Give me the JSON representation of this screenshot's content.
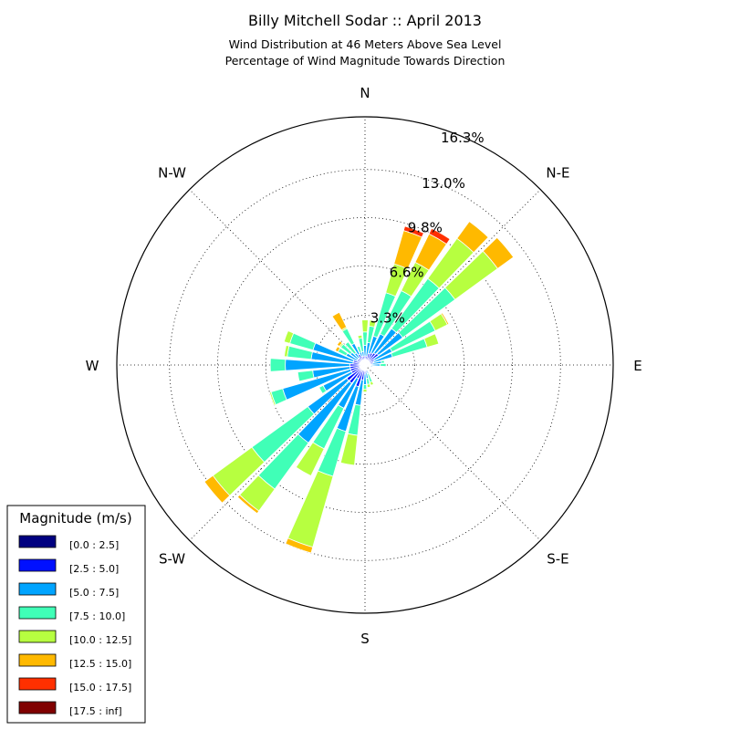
{
  "chart_data": {
    "type": "windrose",
    "title": "Billy Mitchell Sodar :: April 2013",
    "subtitle_lines": [
      "Wind Distribution at 46 Meters Above Sea Level",
      "Percentage of Wind Magnitude Towards Direction"
    ],
    "directions": [
      "N",
      "N-E",
      "E",
      "S-E",
      "S",
      "S-W",
      "W",
      "N-W"
    ],
    "radial_ticks": [
      3.3,
      6.6,
      9.8,
      13.0,
      16.3
    ],
    "radial_tick_labels": [
      "3.3%",
      "6.6%",
      "9.8%",
      "13.0%",
      "16.3%"
    ],
    "rmax": 16.5,
    "legend": {
      "title": "Magnitude (m/s)",
      "location": "lower-left",
      "bins": [
        "[0.0 : 2.5]",
        "[2.5 : 5.0]",
        "[5.0 : 7.5]",
        "[7.5 : 10.0]",
        "[10.0 : 12.5]",
        "[12.5 : 15.0]",
        "[15.0 : 17.5]",
        "[17.5 : inf]"
      ],
      "colors": [
        "#000080",
        "#0010ff",
        "#00a4ff",
        "#40ffb7",
        "#b7ff40",
        "#ffb900",
        "#ff3000",
        "#800000"
      ]
    },
    "sector_angles_deg": [
      0,
      10,
      20,
      30,
      40,
      50,
      60,
      70,
      80,
      90,
      100,
      110,
      120,
      130,
      140,
      150,
      160,
      170,
      180,
      190,
      200,
      210,
      220,
      230,
      240,
      250,
      260,
      270,
      280,
      290,
      300,
      310,
      320,
      330,
      340,
      350
    ],
    "sector_width_deg": 8,
    "cumulative_percent": [
      [
        0.2,
        0.6,
        1.3,
        2.2,
        3.0,
        3.0,
        3.0,
        3.0
      ],
      [
        0.2,
        0.6,
        1.5,
        2.6,
        3.0,
        3.0,
        3.0,
        3.0
      ],
      [
        0.2,
        0.8,
        2.0,
        5.0,
        7.0,
        9.3,
        9.6,
        9.6
      ],
      [
        0.2,
        0.9,
        2.3,
        5.5,
        7.6,
        9.7,
        10.1,
        10.1
      ],
      [
        0.2,
        1.0,
        3.0,
        7.1,
        10.4,
        11.8,
        11.8,
        11.8
      ],
      [
        0.2,
        1.1,
        3.1,
        7.4,
        10.9,
        12.2,
        12.2,
        12.2
      ],
      [
        0.2,
        0.7,
        2.0,
        5.2,
        6.1,
        6.2,
        6.2,
        6.2
      ],
      [
        0.2,
        0.6,
        1.9,
        4.3,
        5.1,
        5.1,
        5.1,
        5.1
      ],
      [
        0.1,
        0.5,
        1.1,
        1.3,
        1.3,
        1.3,
        1.3,
        1.3
      ],
      [
        0.1,
        0.4,
        1.0,
        1.4,
        1.4,
        1.4,
        1.4,
        1.4
      ],
      [
        0.1,
        0.3,
        0.5,
        0.5,
        0.5,
        0.5,
        0.5,
        0.5
      ],
      [
        0.1,
        0.2,
        0.2,
        0.2,
        0.2,
        0.2,
        0.2,
        0.2
      ],
      [
        0.1,
        0.1,
        0.1,
        0.1,
        0.1,
        0.1,
        0.1,
        0.1
      ],
      [
        0.1,
        0.1,
        0.1,
        0.1,
        0.1,
        0.1,
        0.1,
        0.1
      ],
      [
        0.1,
        0.1,
        0.1,
        0.1,
        0.1,
        0.1,
        0.1,
        0.1
      ],
      [
        0.1,
        0.1,
        0.1,
        0.1,
        0.1,
        0.1,
        0.1,
        0.1
      ],
      [
        0.1,
        0.3,
        0.6,
        1.2,
        1.4,
        1.4,
        1.4,
        1.4
      ],
      [
        0.2,
        0.5,
        0.9,
        1.3,
        1.5,
        1.5,
        1.5,
        1.5
      ],
      [
        0.2,
        0.6,
        1.3,
        1.6,
        1.8,
        1.8,
        1.8,
        1.8
      ],
      [
        0.3,
        1.0,
        2.7,
        4.7,
        6.7,
        6.7,
        6.7,
        6.7
      ],
      [
        0.3,
        1.5,
        4.6,
        7.7,
        12.6,
        13.0,
        13.0,
        13.0
      ],
      [
        0.3,
        1.0,
        3.2,
        6.2,
        8.2,
        8.2,
        8.2,
        8.2
      ],
      [
        0.3,
        1.5,
        6.4,
        10.2,
        12.0,
        12.2,
        12.2,
        12.2
      ],
      [
        0.3,
        1.5,
        4.7,
        9.3,
        12.5,
        13.2,
        13.2,
        13.2
      ],
      [
        0.3,
        1.0,
        3.1,
        3.4,
        3.4,
        3.4,
        3.4,
        3.4
      ],
      [
        0.3,
        1.0,
        5.7,
        6.5,
        6.6,
        6.6,
        6.6,
        6.6
      ],
      [
        0.3,
        1.0,
        3.5,
        4.5,
        4.5,
        4.5,
        4.5,
        4.5
      ],
      [
        0.3,
        1.0,
        5.3,
        6.3,
        6.3,
        6.3,
        6.3,
        6.3
      ],
      [
        0.3,
        0.8,
        3.6,
        5.2,
        5.4,
        5.4,
        5.4,
        5.4
      ],
      [
        0.3,
        0.8,
        3.6,
        5.2,
        5.6,
        5.6,
        5.6,
        5.6
      ],
      [
        0.2,
        0.6,
        1.4,
        2.0,
        2.0,
        2.2,
        2.2,
        2.2
      ],
      [
        0.2,
        0.6,
        1.2,
        2.0,
        2.1,
        2.3,
        2.3,
        2.3
      ],
      [
        0.2,
        0.6,
        1.0,
        1.9,
        1.9,
        1.9,
        1.9,
        1.9
      ],
      [
        0.2,
        0.8,
        1.6,
        2.7,
        2.8,
        3.9,
        3.9,
        3.9
      ],
      [
        0.2,
        0.6,
        0.9,
        1.3,
        1.3,
        1.3,
        1.3,
        1.3
      ],
      [
        0.2,
        0.6,
        0.9,
        1.8,
        2.0,
        2.0,
        2.0,
        2.0
      ]
    ]
  }
}
